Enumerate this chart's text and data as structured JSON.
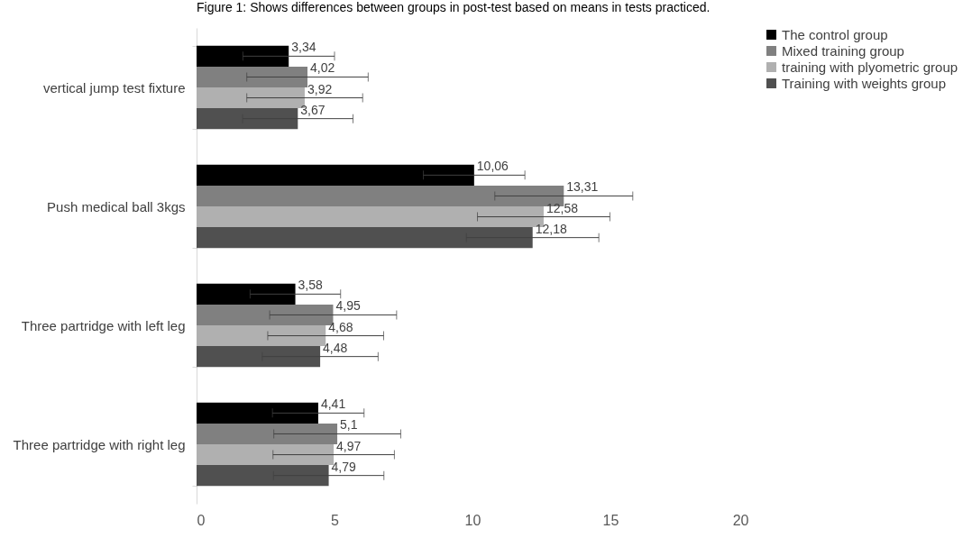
{
  "chart_data": {
    "type": "bar",
    "orientation": "horizontal",
    "title": "Figure 1: Shows differences between groups in post-test based on means in tests practiced.",
    "categories": [
      "vertical jump test  fixture",
      "Push medical ball 3kgs",
      "Three partridge  with left leg",
      "Three  partridge  with right leg"
    ],
    "series": [
      {
        "name": "The control group",
        "color": "#000000",
        "values": [
          3.34,
          10.06,
          3.58,
          4.41
        ],
        "errors": [
          1.66,
          1.84,
          1.64,
          1.66
        ],
        "value_labels": [
          "3,34",
          "10,06",
          "3,58",
          "4,41"
        ]
      },
      {
        "name": "Mixed training group",
        "color": "#808080",
        "values": [
          4.02,
          13.31,
          4.95,
          5.1
        ],
        "errors": [
          2.2,
          2.5,
          2.3,
          2.3
        ],
        "value_labels": [
          "4,02",
          "13,31",
          "4,95",
          "5,1"
        ]
      },
      {
        "name": "training with plyometric group",
        "color": "#b0b0b0",
        "values": [
          3.92,
          12.58,
          4.68,
          4.97
        ],
        "errors": [
          2.1,
          2.4,
          2.1,
          2.2
        ],
        "value_labels": [
          "3,92",
          "12,58",
          "4,68",
          "4,97"
        ]
      },
      {
        "name": "Training  with weights group",
        "color": "#505050",
        "values": [
          3.67,
          12.18,
          4.48,
          4.79
        ],
        "errors": [
          2.0,
          2.4,
          2.1,
          2.0
        ],
        "value_labels": [
          "3,67",
          "12,18",
          "4,48",
          "4,79"
        ]
      }
    ],
    "xlim": [
      0,
      20
    ],
    "xticks": [
      0,
      5,
      10,
      15,
      20
    ],
    "grid": false,
    "legend": "right"
  }
}
